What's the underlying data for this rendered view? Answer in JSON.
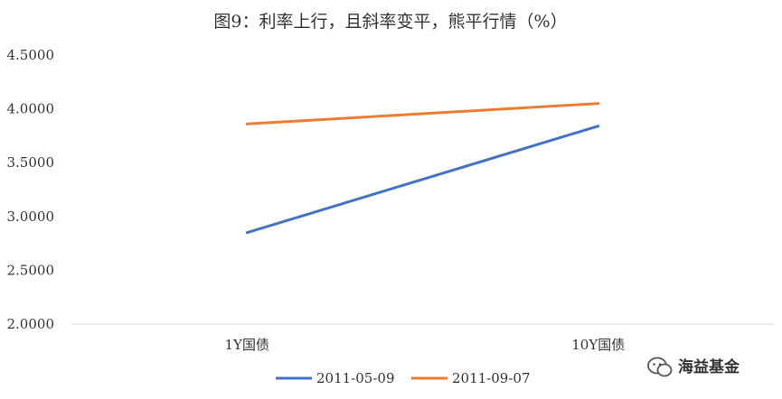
{
  "chart_data": {
    "type": "line",
    "title": "图9：利率上行，且斜率变平，熊平行情（%）",
    "xlabel": "",
    "ylabel": "",
    "categories": [
      "1Y国债",
      "10Y国债"
    ],
    "y_ticks": [
      "2.0000",
      "2.5000",
      "3.0000",
      "3.5000",
      "4.0000",
      "4.5000"
    ],
    "ylim": [
      2.0,
      4.5
    ],
    "grid": false,
    "legend_position": "bottom",
    "series": [
      {
        "name": "2011-05-09",
        "color": "#4472C4",
        "values": [
          2.85,
          3.84
        ]
      },
      {
        "name": "2011-09-07",
        "color": "#ED7D31",
        "values": [
          3.86,
          4.05
        ]
      }
    ]
  },
  "watermark": {
    "icon": "wechat-icon",
    "text": "海益基金"
  }
}
